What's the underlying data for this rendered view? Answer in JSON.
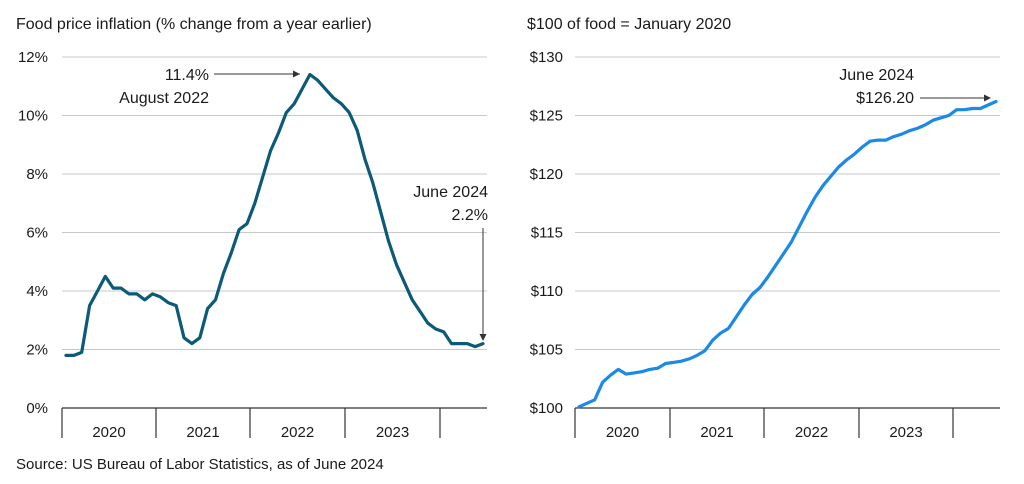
{
  "source": "Source: US Bureau of Labor Statistics, as of June 2024",
  "colors": {
    "left_line": "#0b5a78",
    "right_line": "#1a8ae6"
  },
  "chart_data": [
    {
      "type": "line",
      "title": "Food price inflation (% change from a year earlier)",
      "ylim": [
        0,
        12
      ],
      "yticks": [
        "0%",
        "2%",
        "4%",
        "6%",
        "8%",
        "10%",
        "12%"
      ],
      "year_labels": [
        "2020",
        "2021",
        "2022",
        "2023"
      ],
      "series": [
        {
          "x": [
            "2020-01",
            "2020-02",
            "2020-03",
            "2020-04",
            "2020-05",
            "2020-06",
            "2020-07",
            "2020-08",
            "2020-09",
            "2020-10",
            "2020-11",
            "2020-12",
            "2021-01",
            "2021-02",
            "2021-03",
            "2021-04",
            "2021-05",
            "2021-06",
            "2021-07",
            "2021-08",
            "2021-09",
            "2021-10",
            "2021-11",
            "2021-12",
            "2022-01",
            "2022-02",
            "2022-03",
            "2022-04",
            "2022-05",
            "2022-06",
            "2022-07",
            "2022-08",
            "2022-09",
            "2022-10",
            "2022-11",
            "2022-12",
            "2023-01",
            "2023-02",
            "2023-03",
            "2023-04",
            "2023-05",
            "2023-06",
            "2023-07",
            "2023-08",
            "2023-09",
            "2023-10",
            "2023-11",
            "2023-12",
            "2024-01",
            "2024-02",
            "2024-03",
            "2024-04",
            "2024-05",
            "2024-06"
          ],
          "values": [
            1.8,
            1.8,
            1.9,
            3.5,
            4.0,
            4.5,
            4.1,
            4.1,
            3.9,
            3.9,
            3.7,
            3.9,
            3.8,
            3.6,
            3.5,
            2.4,
            2.2,
            2.4,
            3.4,
            3.7,
            4.6,
            5.3,
            6.1,
            6.3,
            7.0,
            7.9,
            8.8,
            9.4,
            10.1,
            10.4,
            10.9,
            11.4,
            11.2,
            10.9,
            10.6,
            10.4,
            10.1,
            9.5,
            8.5,
            7.7,
            6.7,
            5.7,
            4.9,
            4.3,
            3.7,
            3.3,
            2.9,
            2.7,
            2.6,
            2.2,
            2.2,
            2.2,
            2.1,
            2.2
          ]
        }
      ],
      "annotations": [
        {
          "value": "11.4%",
          "label": "August 2022"
        },
        {
          "label": "June 2024",
          "value": "2.2%"
        }
      ]
    },
    {
      "type": "line",
      "title": "$100 of food = January 2020",
      "ylim": [
        100,
        130
      ],
      "yticks": [
        "$100",
        "$105",
        "$110",
        "$115",
        "$120",
        "$125",
        "$130"
      ],
      "year_labels": [
        "2020",
        "2021",
        "2022",
        "2023"
      ],
      "series": [
        {
          "x": [
            "2020-01",
            "2020-02",
            "2020-03",
            "2020-04",
            "2020-05",
            "2020-06",
            "2020-07",
            "2020-08",
            "2020-09",
            "2020-10",
            "2020-11",
            "2020-12",
            "2021-01",
            "2021-02",
            "2021-03",
            "2021-04",
            "2021-05",
            "2021-06",
            "2021-07",
            "2021-08",
            "2021-09",
            "2021-10",
            "2021-11",
            "2021-12",
            "2022-01",
            "2022-02",
            "2022-03",
            "2022-04",
            "2022-05",
            "2022-06",
            "2022-07",
            "2022-08",
            "2022-09",
            "2022-10",
            "2022-11",
            "2022-12",
            "2023-01",
            "2023-02",
            "2023-03",
            "2023-04",
            "2023-05",
            "2023-06",
            "2023-07",
            "2023-08",
            "2023-09",
            "2023-10",
            "2023-11",
            "2023-12",
            "2024-01",
            "2024-02",
            "2024-03",
            "2024-04",
            "2024-05",
            "2024-06"
          ],
          "values": [
            100.1,
            100.4,
            100.7,
            102.2,
            102.8,
            103.3,
            102.9,
            103.0,
            103.1,
            103.3,
            103.4,
            103.8,
            103.9,
            104.0,
            104.2,
            104.5,
            104.9,
            105.8,
            106.4,
            106.8,
            107.8,
            108.8,
            109.7,
            110.3,
            111.2,
            112.2,
            113.2,
            114.2,
            115.5,
            116.8,
            118.0,
            119.0,
            119.8,
            120.6,
            121.2,
            121.7,
            122.3,
            122.8,
            122.9,
            122.9,
            123.2,
            123.4,
            123.7,
            123.9,
            124.2,
            124.6,
            124.8,
            125.0,
            125.5,
            125.5,
            125.6,
            125.6,
            125.9,
            126.2
          ]
        }
      ],
      "annotations": [
        {
          "label": "June 2024",
          "value": "$126.20"
        }
      ]
    }
  ]
}
